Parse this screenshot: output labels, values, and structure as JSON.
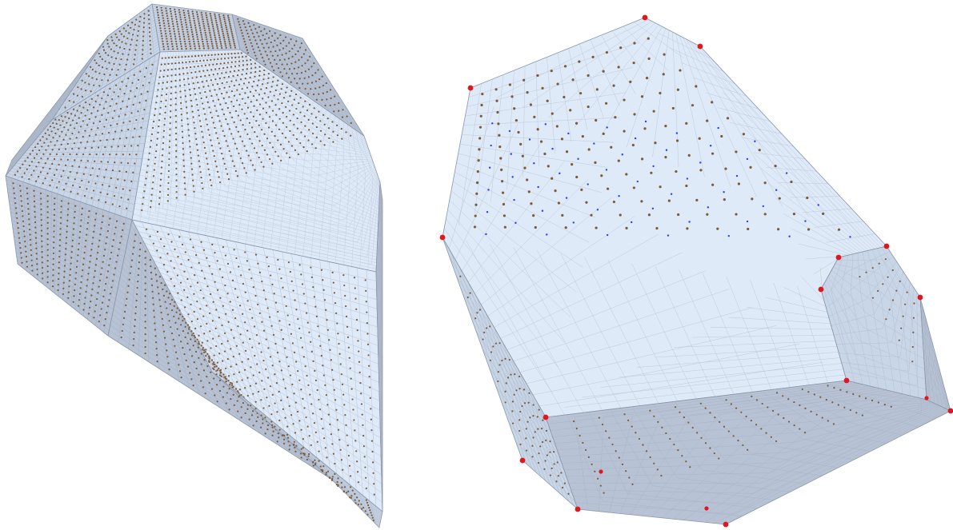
{
  "figure": {
    "panels": [
      {
        "name": "left-polytope",
        "mesh": "dense",
        "points": "small"
      },
      {
        "name": "right-polytope",
        "mesh": "coarse",
        "points": "lattice"
      }
    ]
  },
  "colors": {
    "face_light": "#dfeaf9",
    "face_mid": "#c9d6e8",
    "face_dark": "#b7c3d4",
    "edge": "#8a96a8",
    "mesh_line": "#9aa6b8",
    "vertex_red": "#e0171b",
    "lattice_brown": "#7a5a3a",
    "interior_blue": "#2b3ff0"
  }
}
